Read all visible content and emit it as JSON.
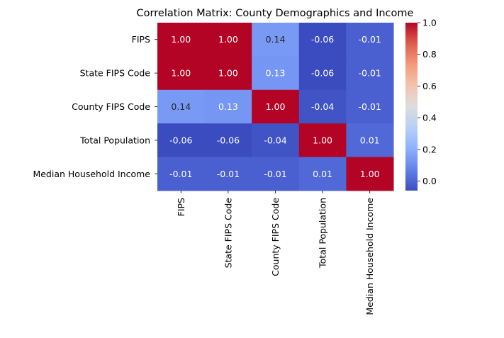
{
  "chart_data": {
    "type": "heatmap",
    "title": "Correlation Matrix: County Demographics and Income",
    "row_labels": [
      "FIPS",
      "State FIPS Code",
      "County FIPS Code",
      "Total Population",
      "Median Household Income"
    ],
    "col_labels": [
      "FIPS",
      "State FIPS Code",
      "County FIPS Code",
      "Total Population",
      "Median Household Income"
    ],
    "values": [
      [
        1.0,
        1.0,
        0.14,
        -0.06,
        -0.01
      ],
      [
        1.0,
        1.0,
        0.13,
        -0.06,
        -0.01
      ],
      [
        0.14,
        0.13,
        1.0,
        -0.04,
        -0.01
      ],
      [
        -0.06,
        -0.06,
        -0.04,
        1.0,
        0.01
      ],
      [
        -0.01,
        -0.01,
        -0.01,
        0.01,
        1.0
      ]
    ],
    "value_format": "0.00",
    "colormap": "coolwarm",
    "vmin": -0.06,
    "vmax": 1.0,
    "colorbar": {
      "ticks": [
        0.0,
        0.2,
        0.4,
        0.6,
        0.8,
        1.0
      ],
      "tick_labels": [
        "0.0",
        "0.2",
        "0.4",
        "0.6",
        "0.8",
        "1.0"
      ],
      "placement": "right"
    },
    "grid": false
  }
}
